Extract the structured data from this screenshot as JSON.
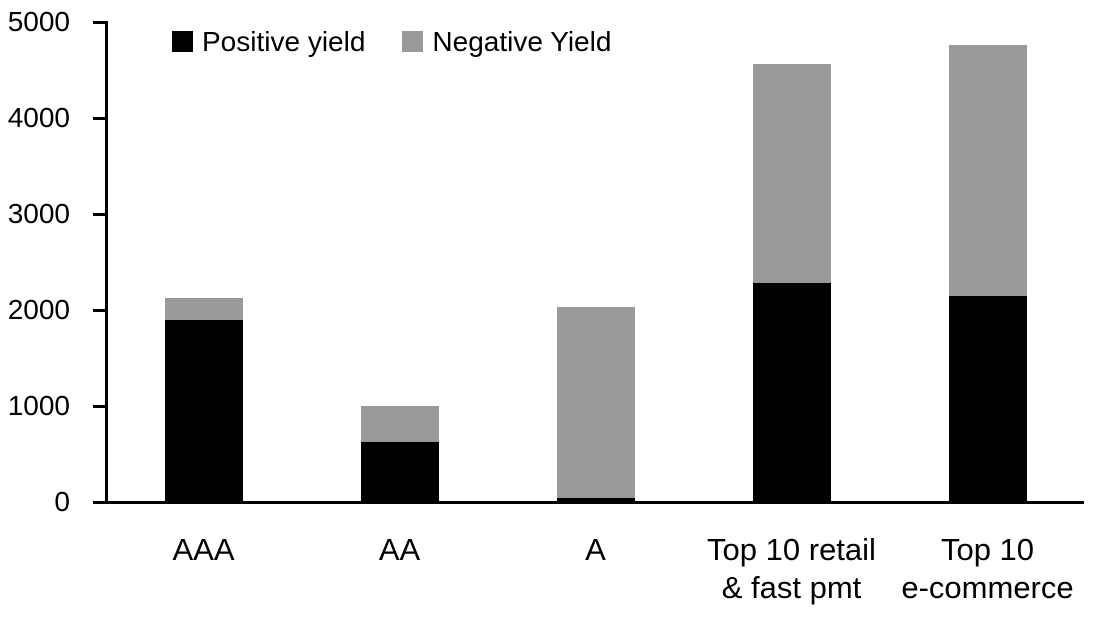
{
  "chart_data": {
    "type": "bar",
    "stacked": true,
    "title": "",
    "xlabel": "",
    "ylabel": "",
    "categories": [
      "AAA",
      "AA",
      "A",
      "Top 10 retail & fast pmt",
      "Top 10 e-commerce"
    ],
    "category_label_lines": [
      [
        "AAA"
      ],
      [
        "AA"
      ],
      [
        "A"
      ],
      [
        "Top 10 retail",
        "& fast pmt"
      ],
      [
        "Top 10",
        "e-commerce"
      ]
    ],
    "series": [
      {
        "name": "Positive yield",
        "color": "#000000",
        "values": [
          1900,
          620,
          45,
          2280,
          2150
        ]
      },
      {
        "name": "Negative Yield",
        "color": "#999999",
        "values": [
          220,
          380,
          1985,
          2280,
          2610
        ]
      }
    ],
    "stack_totals": [
      2120,
      1000,
      2030,
      4560,
      4760
    ],
    "ylim": [
      0,
      5000
    ],
    "y_ticks": [
      0,
      1000,
      2000,
      3000,
      4000,
      5000
    ],
    "grid": false,
    "legend_position": "top-left"
  },
  "colors": {
    "axis": "#000000",
    "background": "#ffffff",
    "text": "#000000"
  }
}
